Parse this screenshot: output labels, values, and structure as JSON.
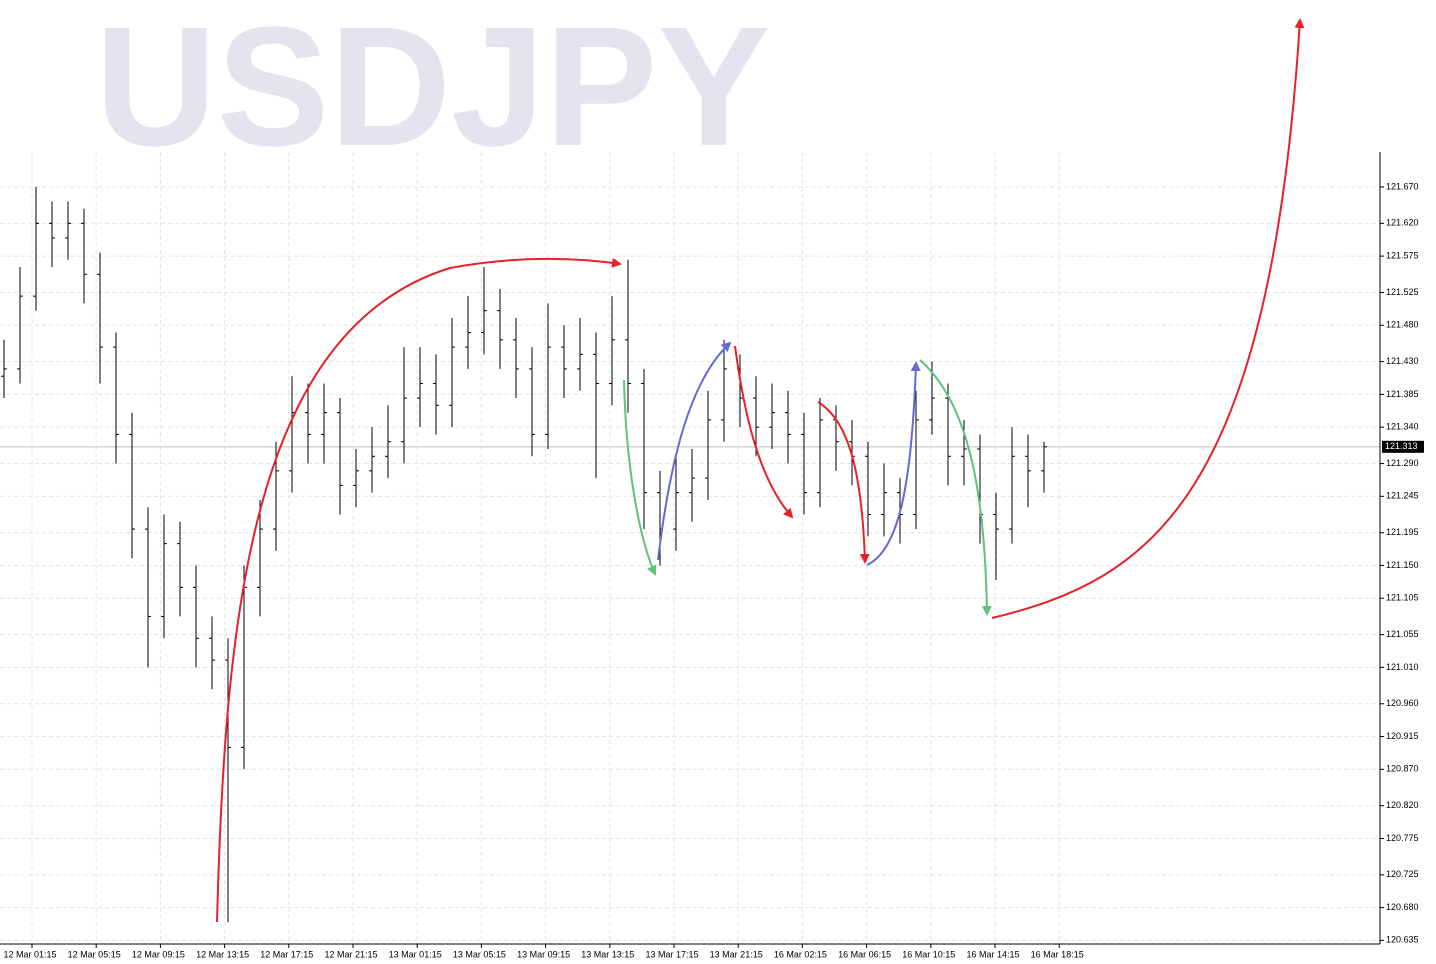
{
  "chart_data": {
    "type": "ohlc",
    "title": "USDJPY",
    "color": "#000000",
    "grid": true,
    "x_labels": [
      "12 Mar 01:15",
      "12 Mar 05:15",
      "12 Mar 09:15",
      "12 Mar 13:15",
      "12 Mar 17:15",
      "12 Mar 21:15",
      "13 Mar 01:15",
      "13 Mar 05:15",
      "13 Mar 09:15",
      "13 Mar 13:15",
      "13 Mar 17:15",
      "13 Mar 21:15",
      "16 Mar 02:15",
      "16 Mar 06:15",
      "16 Mar 10:15",
      "16 Mar 14:15",
      "16 Mar 18:15"
    ],
    "open": [
      121.41,
      121.42,
      121.52,
      121.62,
      121.6,
      121.62,
      121.55,
      121.45,
      121.33,
      121.2,
      121.08,
      121.18,
      121.12,
      121.05,
      121.02,
      120.9,
      121.12,
      121.2,
      121.28,
      121.36,
      121.33,
      121.36,
      121.26,
      121.28,
      121.3,
      121.32,
      121.38,
      121.4,
      121.37,
      121.45,
      121.47,
      121.5,
      121.46,
      121.42,
      121.33,
      121.45,
      121.42,
      121.44,
      121.4,
      121.46,
      121.4,
      121.25,
      121.2,
      121.25,
      121.27,
      121.35,
      121.42,
      121.38,
      121.34,
      121.36,
      121.33,
      121.25,
      121.35,
      121.32,
      121.3,
      121.22,
      121.25,
      121.22,
      121.35,
      121.38,
      121.3,
      121.31,
      121.22,
      121.2,
      121.3,
      121.28
    ],
    "high": [
      121.46,
      121.56,
      121.67,
      121.65,
      121.65,
      121.64,
      121.58,
      121.47,
      121.36,
      121.23,
      121.22,
      121.21,
      121.15,
      121.08,
      121.05,
      121.15,
      121.24,
      121.32,
      121.41,
      121.4,
      121.4,
      121.38,
      121.31,
      121.34,
      121.37,
      121.45,
      121.45,
      121.44,
      121.49,
      121.52,
      121.56,
      121.53,
      121.49,
      121.45,
      121.51,
      121.48,
      121.49,
      121.47,
      121.52,
      121.57,
      121.42,
      121.28,
      121.3,
      121.31,
      121.39,
      121.46,
      121.44,
      121.41,
      121.4,
      121.39,
      121.36,
      121.38,
      121.37,
      121.35,
      121.32,
      121.29,
      121.27,
      121.39,
      121.43,
      121.4,
      121.35,
      121.33,
      121.25,
      121.34,
      121.33,
      121.32
    ],
    "low": [
      121.38,
      121.4,
      121.5,
      121.56,
      121.57,
      121.51,
      121.4,
      121.29,
      121.16,
      121.01,
      121.05,
      121.08,
      121.01,
      120.98,
      120.66,
      120.87,
      121.08,
      121.17,
      121.25,
      121.29,
      121.29,
      121.22,
      121.23,
      121.25,
      121.27,
      121.29,
      121.34,
      121.33,
      121.34,
      121.42,
      121.44,
      121.42,
      121.38,
      121.3,
      121.31,
      121.38,
      121.39,
      121.27,
      121.37,
      121.36,
      121.2,
      121.15,
      121.17,
      121.21,
      121.24,
      121.32,
      121.34,
      121.3,
      121.31,
      121.29,
      121.22,
      121.23,
      121.28,
      121.26,
      121.19,
      121.19,
      121.18,
      121.2,
      121.33,
      121.26,
      121.26,
      121.18,
      121.13,
      121.18,
      121.23,
      121.25
    ],
    "close": [
      121.42,
      121.52,
      121.62,
      121.6,
      121.62,
      121.55,
      121.45,
      121.33,
      121.2,
      121.08,
      121.18,
      121.12,
      121.05,
      121.02,
      120.9,
      121.12,
      121.2,
      121.28,
      121.36,
      121.33,
      121.36,
      121.26,
      121.28,
      121.3,
      121.32,
      121.38,
      121.4,
      121.37,
      121.45,
      121.47,
      121.5,
      121.46,
      121.42,
      121.33,
      121.45,
      121.42,
      121.44,
      121.4,
      121.46,
      121.4,
      121.25,
      121.2,
      121.25,
      121.27,
      121.35,
      121.42,
      121.38,
      121.34,
      121.36,
      121.33,
      121.25,
      121.35,
      121.32,
      121.3,
      121.22,
      121.25,
      121.22,
      121.35,
      121.38,
      121.3,
      121.31,
      121.22,
      121.2,
      121.3,
      121.28,
      121.313
    ],
    "last_price": 121.313,
    "ylim": [
      120.63,
      121.718
    ],
    "yticks": [
      120.635,
      {
        "value": 120.68,
        "label": "120.680"
      },
      120.725,
      120.775,
      {
        "value": 120.82,
        "label": "120.820"
      },
      {
        "value": 120.87,
        "label": "120.870"
      },
      120.915,
      {
        "value": 120.96,
        "label": "120.960"
      },
      {
        "value": 121.01,
        "label": "121.010"
      },
      121.055,
      121.105,
      {
        "value": 121.15,
        "label": "121.150"
      },
      121.195,
      121.245,
      {
        "value": 121.29,
        "label": "121.290"
      },
      {
        "value": 121.34,
        "label": "121.340"
      },
      121.385,
      {
        "value": 121.43,
        "label": "121.430"
      },
      {
        "value": 121.48,
        "label": "121.480"
      },
      121.525,
      121.575,
      {
        "value": 121.62,
        "label": "121.620"
      },
      {
        "value": 121.67,
        "label": "121.670"
      }
    ]
  }
}
